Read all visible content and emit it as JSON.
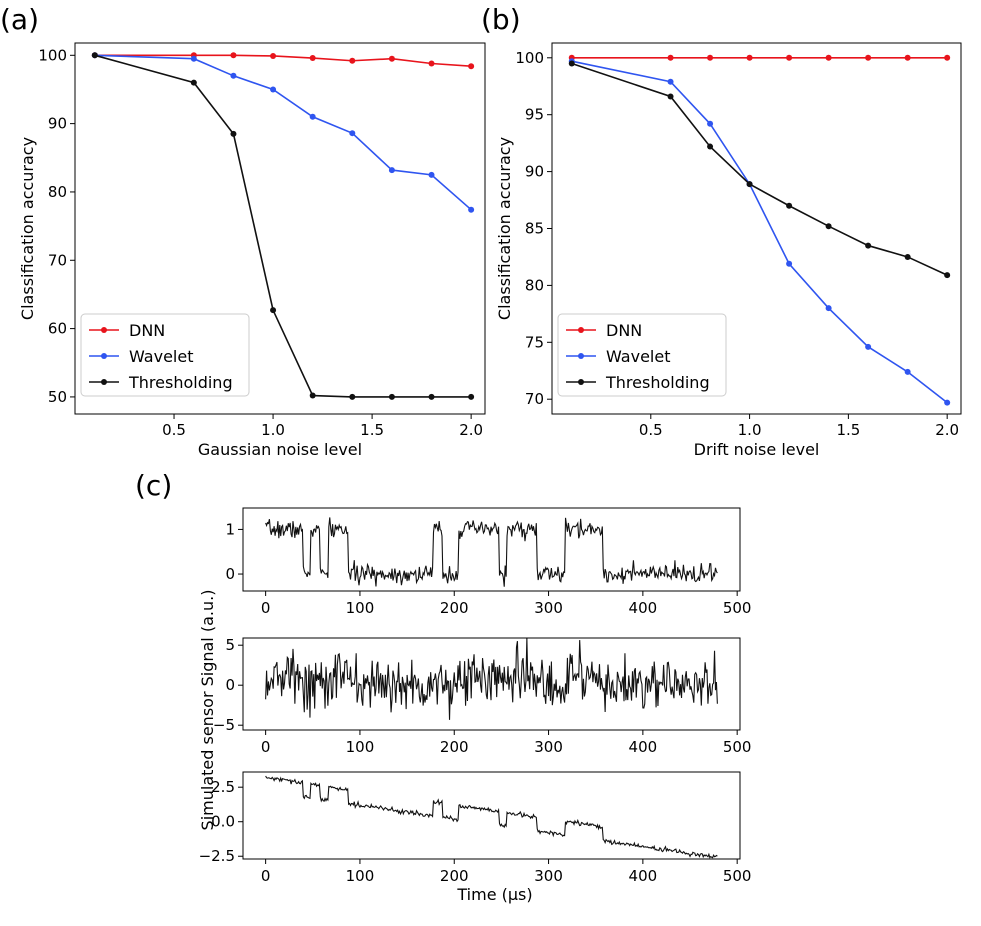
{
  "chart_data": [
    {
      "panel": "(a)",
      "type": "line",
      "xlabel": "Gaussian noise level",
      "ylabel": "Classification accuracy",
      "xlim": [
        0.0,
        2.07
      ],
      "ylim": [
        47.5,
        101.8
      ],
      "xticks": [
        0.5,
        1.0,
        1.5,
        2.0
      ],
      "xtick_labels": [
        "0.5",
        "1.0",
        "1.5",
        "2.0"
      ],
      "yticks": [
        50,
        60,
        70,
        80,
        90,
        100
      ],
      "ytick_labels": [
        "50",
        "60",
        "70",
        "80",
        "90",
        "100"
      ],
      "x": [
        0.1,
        0.6,
        0.8,
        1.0,
        1.2,
        1.4,
        1.6,
        1.8,
        2.0
      ],
      "series": [
        {
          "name": "DNN",
          "color": "#e8141c",
          "values": [
            100,
            100,
            100,
            99.9,
            99.6,
            99.2,
            99.5,
            98.8,
            98.4
          ]
        },
        {
          "name": "Wavelet",
          "color": "#2f55f0",
          "values": [
            100,
            99.5,
            97,
            95,
            91,
            88.6,
            83.2,
            82.5,
            77.4
          ]
        },
        {
          "name": "Thresholding",
          "color": "#111111",
          "values": [
            100,
            96,
            88.5,
            62.7,
            50.2,
            50,
            50,
            50,
            50
          ]
        }
      ],
      "legend": "lower-left"
    },
    {
      "panel": "(b)",
      "type": "line",
      "xlabel": "Drift noise level",
      "ylabel": "Classification accuracy",
      "xlim": [
        0.0,
        2.07
      ],
      "ylim": [
        68.7,
        101.3
      ],
      "xticks": [
        0.5,
        1.0,
        1.5,
        2.0
      ],
      "xtick_labels": [
        "0.5",
        "1.0",
        "1.5",
        "2.0"
      ],
      "yticks": [
        70,
        75,
        80,
        85,
        90,
        95,
        100
      ],
      "ytick_labels": [
        "70",
        "75",
        "80",
        "85",
        "90",
        "95",
        "100"
      ],
      "x": [
        0.1,
        0.6,
        0.8,
        1.0,
        1.2,
        1.4,
        1.6,
        1.8,
        2.0
      ],
      "series": [
        {
          "name": "DNN",
          "color": "#e8141c",
          "values": [
            100,
            100,
            100,
            100,
            100,
            100,
            100,
            100,
            100
          ]
        },
        {
          "name": "Wavelet",
          "color": "#2f55f0",
          "values": [
            99.7,
            97.9,
            94.2,
            88.9,
            81.9,
            78.0,
            74.6,
            72.4,
            69.7
          ]
        },
        {
          "name": "Thresholding",
          "color": "#111111",
          "values": [
            99.5,
            96.6,
            92.2,
            88.9,
            87.0,
            85.2,
            83.5,
            82.5,
            80.9
          ]
        }
      ],
      "legend": "lower-left"
    },
    {
      "panel": "(c)",
      "type": "line",
      "ylabel": "Simulated sensor Signal (a.u.)",
      "xlabel": "Time (μs)",
      "x_range": [
        0,
        479
      ],
      "segments": [
        [
          0,
          1
        ],
        [
          40,
          0
        ],
        [
          48,
          1
        ],
        [
          58,
          0
        ],
        [
          67,
          1
        ],
        [
          88,
          0
        ],
        [
          178,
          1
        ],
        [
          188,
          0
        ],
        [
          205,
          1
        ],
        [
          248,
          0
        ],
        [
          256,
          1
        ],
        [
          288,
          0
        ],
        [
          318,
          1
        ],
        [
          358,
          0
        ]
      ],
      "subplots": [
        {
          "description": "clean telegraph signal",
          "kind": "telegraph",
          "noise_std": 0.1,
          "drift_slope": 0,
          "offset": 0,
          "seed": 7,
          "xlim": [
            -24,
            503
          ],
          "ylim": [
            -0.38,
            1.48
          ],
          "xticks": [
            0,
            100,
            200,
            300,
            400,
            500
          ],
          "xtick_labels": [
            "0",
            "100",
            "200",
            "300",
            "400",
            "500"
          ],
          "yticks": [
            0,
            1
          ],
          "ytick_labels": [
            "0",
            "1"
          ]
        },
        {
          "description": "gaussian noise dominated signal",
          "kind": "telegraph",
          "noise_std": 1.7,
          "drift_slope": 0,
          "offset": 0,
          "seed": 13,
          "xlim": [
            -24,
            503
          ],
          "ylim": [
            -5.6,
            5.9
          ],
          "xticks": [
            0,
            100,
            200,
            300,
            400,
            500
          ],
          "xtick_labels": [
            "0",
            "100",
            "200",
            "300",
            "400",
            "500"
          ],
          "yticks": [
            -5,
            0,
            5
          ],
          "ytick_labels": [
            "−5",
            "0",
            "5"
          ]
        },
        {
          "description": "drifting signal",
          "kind": "telegraph",
          "noise_std": 0.08,
          "drift_slope": -0.01,
          "offset": 2.2,
          "seed": 29,
          "xlim": [
            -24,
            503
          ],
          "ylim": [
            -2.7,
            3.6
          ],
          "xticks": [
            0,
            100,
            200,
            300,
            400,
            500
          ],
          "xtick_labels": [
            "0",
            "100",
            "200",
            "300",
            "400",
            "500"
          ],
          "yticks": [
            -2.5,
            0,
            2.5
          ],
          "ytick_labels": [
            "−2.5",
            "0.0",
            "2.5"
          ]
        }
      ]
    }
  ]
}
